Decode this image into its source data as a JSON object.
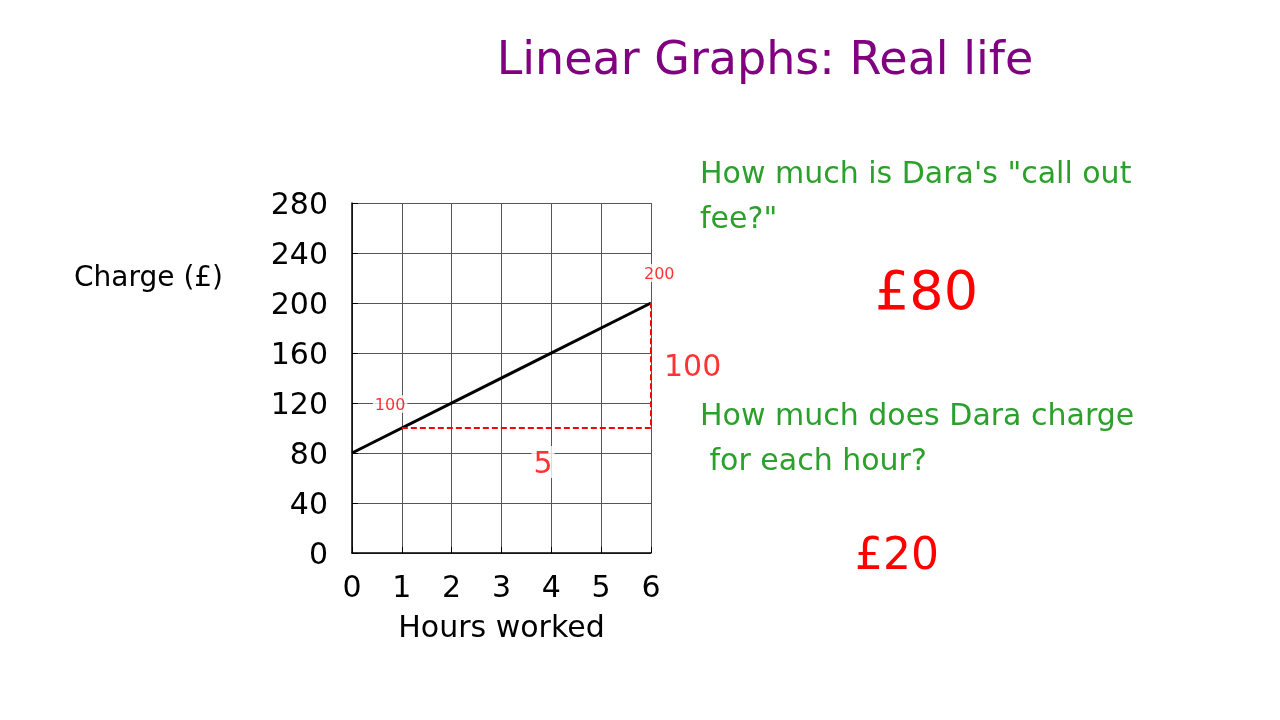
{
  "chart_data": {
    "type": "line",
    "title": "Linear Graphs: Real life",
    "xlabel": "Hours worked",
    "ylabel": "Charge (£)",
    "xlim": [
      0,
      6
    ],
    "xticks": [
      0,
      1,
      2,
      3,
      4,
      5,
      6
    ],
    "ylim": [
      0,
      280
    ],
    "yticks": [
      0,
      40,
      80,
      120,
      160,
      200,
      240,
      280
    ],
    "grid": true,
    "marker": "none",
    "series": [
      {
        "color": "#000000",
        "x": [
          0,
          6
        ],
        "values": [
          80,
          200
        ]
      },
      {
        "color": "#ff0000",
        "line_style": "dashed",
        "x": [
          1,
          6,
          6
        ],
        "values": [
          100,
          100,
          200
        ]
      }
    ],
    "annotations": [
      {
        "text": "100",
        "x": 1,
        "y": 100
      },
      {
        "text": "200",
        "x": 6,
        "y": 200
      },
      {
        "text": "100",
        "x": 6,
        "y": 150
      },
      {
        "text": "5",
        "x": 3.5,
        "y": 100
      },
      "How much is Dara's \"call out fee?\"",
      "£80",
      "How much does Dara charge for each hour?",
      "£20"
    ]
  }
}
